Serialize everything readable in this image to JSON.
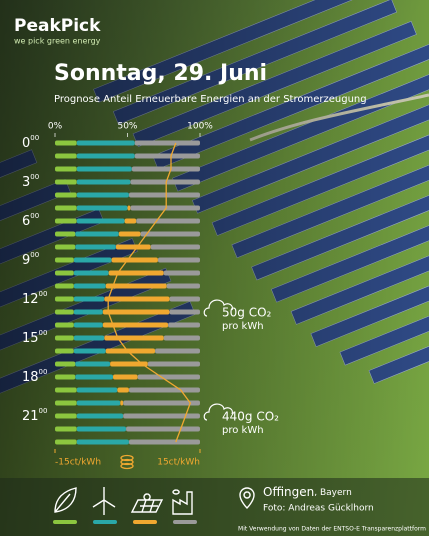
{
  "logo": {
    "name": "PeakPick",
    "tagline": "we pick green energy"
  },
  "chart_data": {
    "type": "bar",
    "orientation": "horizontal",
    "stacked": true,
    "title": "Sonntag, 29. Juni",
    "subtitle": "Prognose Anteil Erneuerbare Energien an der Stromerzeugung",
    "categories": [
      "0",
      null,
      null,
      "3",
      null,
      null,
      "6",
      null,
      null,
      "9",
      null,
      null,
      "12",
      null,
      null,
      "15",
      null,
      null,
      "18",
      null,
      null,
      "21",
      null,
      null
    ],
    "category_superscript": "00",
    "xlim": [
      0,
      100
    ],
    "xticks": [
      {
        "value": 0,
        "label": "0%"
      },
      {
        "value": 50,
        "label": "50%"
      },
      {
        "value": 100,
        "label": "100%"
      }
    ],
    "series": [
      {
        "color": "#8cc63f",
        "values": [
          15,
          15,
          15,
          15,
          15,
          15,
          15,
          14,
          14,
          13,
          13,
          13,
          13,
          13,
          13,
          13,
          13,
          14,
          14,
          15,
          15,
          15,
          15,
          15
        ]
      },
      {
        "color": "#2aa8a8",
        "values": [
          40,
          40,
          38,
          37,
          36,
          35,
          33,
          30,
          28,
          26,
          24,
          22,
          21,
          20,
          20,
          21,
          22,
          24,
          26,
          28,
          30,
          32,
          34,
          36
        ]
      },
      {
        "color": "#f0a830",
        "values": [
          0,
          0,
          0,
          0,
          0,
          2,
          8,
          15,
          24,
          32,
          38,
          42,
          45,
          46,
          45,
          41,
          34,
          26,
          17,
          8,
          2,
          0,
          0,
          0
        ]
      },
      {
        "color": "#9a9a9a",
        "values": [
          45,
          45,
          47,
          48,
          49,
          48,
          44,
          41,
          34,
          29,
          25,
          23,
          21,
          21,
          22,
          25,
          31,
          36,
          43,
          49,
          53,
          53,
          51,
          49
        ]
      }
    ],
    "price": {
      "color": "#f0a830",
      "axis": "x2",
      "values": [
        10,
        9,
        9,
        8,
        8,
        8,
        6,
        4,
        2,
        0,
        -2,
        -3,
        -4,
        -4,
        -3,
        -2,
        0,
        3,
        7,
        11,
        13,
        12,
        11,
        10
      ]
    },
    "x2lim": [
      -15,
      15
    ],
    "x2ticks": [
      {
        "value": -15,
        "label": "-15ct/kWh"
      },
      {
        "value": 15,
        "label": "15ct/kWh"
      }
    ],
    "annotations": [
      {
        "row": 13,
        "amount": "50g CO₂",
        "unit": "pro kWh"
      },
      {
        "row": 21,
        "amount": "440g CO₂",
        "unit": "pro kWh"
      }
    ]
  },
  "location": {
    "place": "Offingen",
    "region": ", Bayern",
    "photo": "Foto: Andreas Gücklhorn"
  },
  "source": "Mit Verwendung von Daten der ENTSO-E Transparenzplattform"
}
